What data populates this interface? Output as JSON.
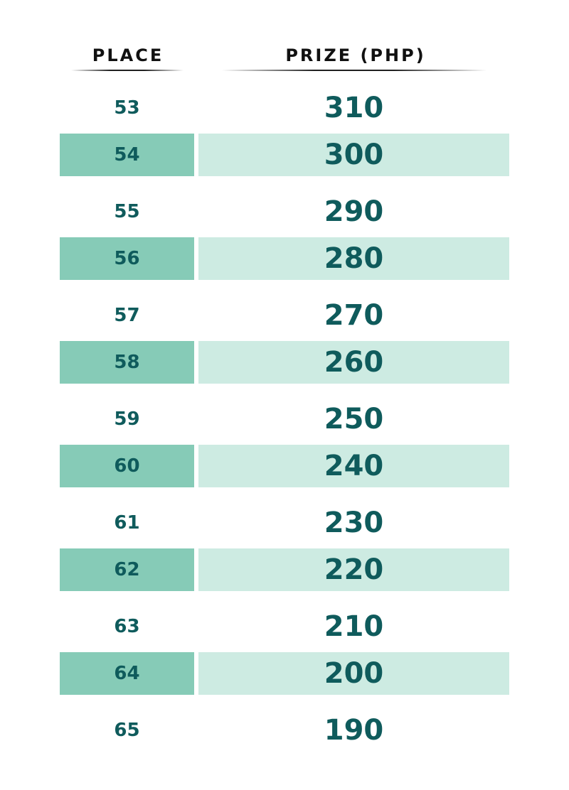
{
  "headers": {
    "place": "PLACE",
    "prize": "PRIZE (PHP)"
  },
  "rows": [
    {
      "place": "53",
      "prize": "310"
    },
    {
      "place": "54",
      "prize": "300"
    },
    {
      "place": "55",
      "prize": "290"
    },
    {
      "place": "56",
      "prize": "280"
    },
    {
      "place": "57",
      "prize": "270"
    },
    {
      "place": "58",
      "prize": "260"
    },
    {
      "place": "59",
      "prize": "250"
    },
    {
      "place": "60",
      "prize": "240"
    },
    {
      "place": "61",
      "prize": "230"
    },
    {
      "place": "62",
      "prize": "220"
    },
    {
      "place": "63",
      "prize": "210"
    },
    {
      "place": "64",
      "prize": "200"
    },
    {
      "place": "65",
      "prize": "190"
    }
  ],
  "colors": {
    "text": "#0f5b5c",
    "place_shade": "#86cbb7",
    "prize_shade": "#cdebe2"
  }
}
